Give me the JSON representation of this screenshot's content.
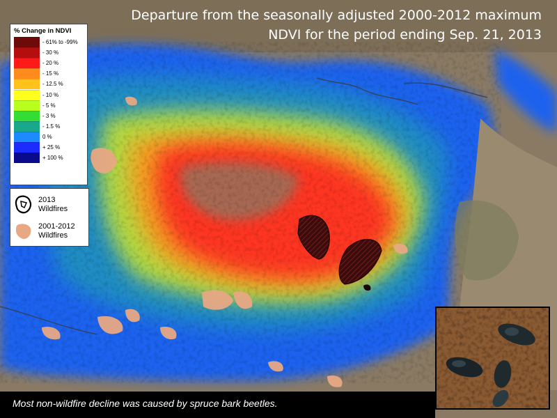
{
  "title": {
    "line1": "Departure from the seasonally adjusted 2000-2012 maximum",
    "line2": "NDVI for the period ending Sep. 21, 2013"
  },
  "legend": {
    "title": "% Change in NDVI",
    "items": [
      {
        "label": "- 61% to -99%",
        "color": "#6e0a0a"
      },
      {
        "label": "- 30 %",
        "color": "#b50e0e"
      },
      {
        "label": "- 20 %",
        "color": "#ff1a1a"
      },
      {
        "label": "- 15 %",
        "color": "#ff8a1e"
      },
      {
        "label": "- 12.5 %",
        "color": "#ffc21a"
      },
      {
        "label": "- 10 %",
        "color": "#ffff1e"
      },
      {
        "label": "- 5 %",
        "color": "#b8ff1e"
      },
      {
        "label": "- 3 %",
        "color": "#33dd33"
      },
      {
        "label": "- 1.5 %",
        "color": "#1aa88a"
      },
      {
        "label": "0 %",
        "color": "#1e8aff"
      },
      {
        "label": "+ 25 %",
        "color": "#1c2cff"
      },
      {
        "label": "+ 100 %",
        "color": "#0a0a8c"
      }
    ]
  },
  "fire_legend": {
    "fire_2013": "2013\nWildfires",
    "fire_2001_2012": "2001-2012\nWildfires"
  },
  "colors": {
    "land": "#8a7a64",
    "fire_2013": "#3a0c0c",
    "fire_old": "#e8a884"
  },
  "caption": "Most non-wildfire decline was caused by spruce bark beetles."
}
